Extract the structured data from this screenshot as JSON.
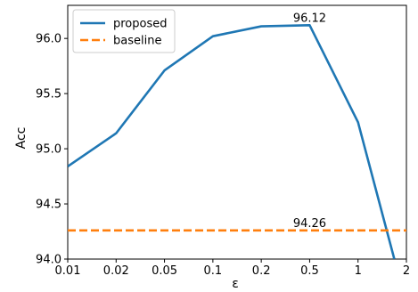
{
  "chart_data": {
    "type": "line",
    "title": "",
    "xlabel": "ε",
    "ylabel": "Acc",
    "x": [
      "0.01",
      "0.02",
      "0.05",
      "0.1",
      "0.2",
      "0.5",
      "1",
      "2"
    ],
    "ylim": [
      94.0,
      96.3
    ],
    "yticks": [
      "94.0",
      "94.5",
      "95.0",
      "95.5",
      "96.0"
    ],
    "grid": false,
    "legend": "top-left",
    "series": [
      {
        "name": "proposed",
        "color": "#1f77b4",
        "style": "solid",
        "points": [
          {
            "x": 0,
            "y": 94.84
          },
          {
            "x": 1,
            "y": 95.14
          },
          {
            "x": 2,
            "y": 95.71
          },
          {
            "x": 3,
            "y": 96.02
          },
          {
            "x": 4,
            "y": 96.11
          },
          {
            "x": 5,
            "y": 96.12
          },
          {
            "x": 6,
            "y": 95.24
          },
          {
            "x": 6.75,
            "y": 94.0
          }
        ]
      },
      {
        "name": "baseline",
        "color": "#ff7f0e",
        "style": "dashed",
        "points": [
          {
            "x": 0,
            "y": 94.26
          },
          {
            "x": 7,
            "y": 94.26
          }
        ]
      }
    ],
    "annotations": [
      {
        "text": "96.12",
        "x": 5,
        "y": 96.12
      },
      {
        "text": "94.26",
        "x": 5,
        "y": 94.26
      }
    ]
  }
}
